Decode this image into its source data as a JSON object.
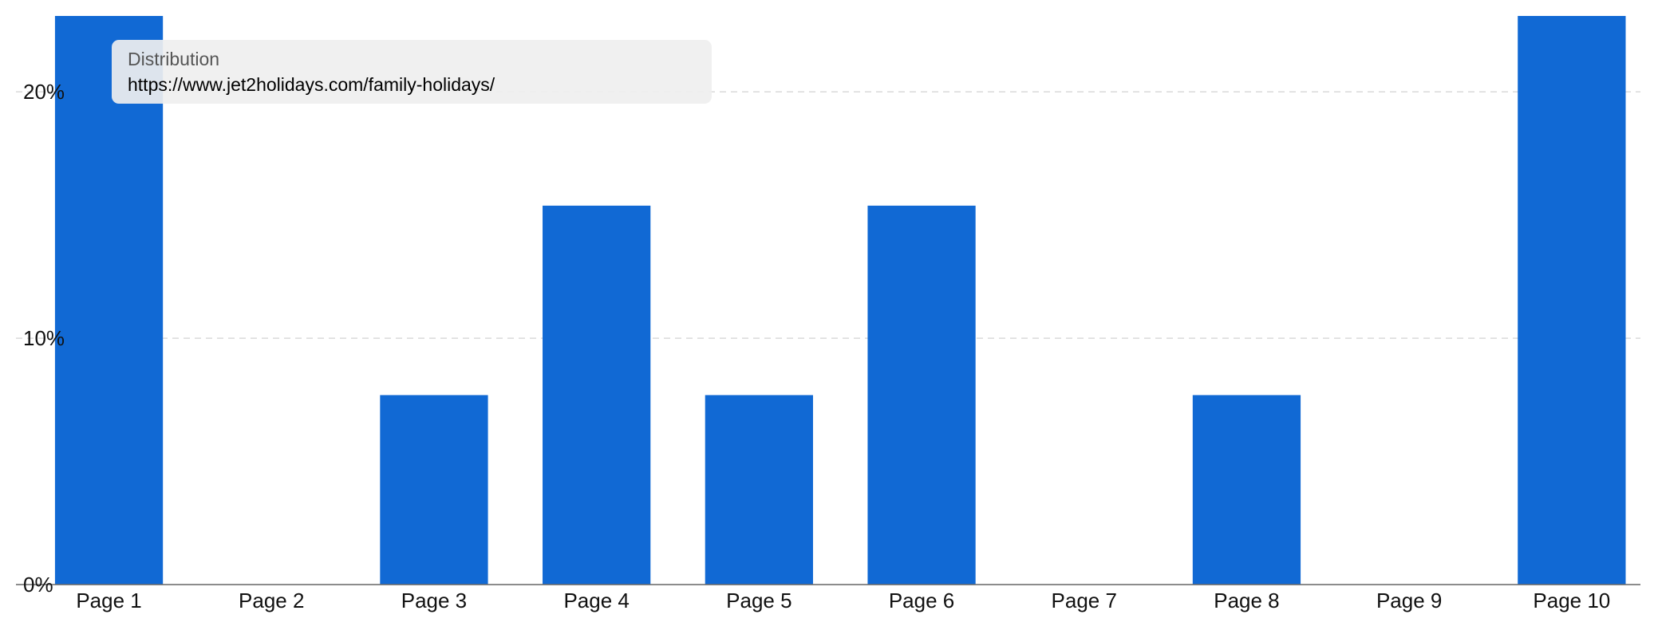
{
  "chart_data": {
    "type": "bar",
    "categories": [
      "Page 1",
      "Page 2",
      "Page 3",
      "Page 4",
      "Page 5",
      "Page 6",
      "Page 7",
      "Page 8",
      "Page 9",
      "Page 10"
    ],
    "values": [
      23.08,
      0,
      7.69,
      15.38,
      7.69,
      15.38,
      0,
      7.69,
      0,
      23.08
    ],
    "color": "#1169d4",
    "ylim": [
      0,
      23.08
    ],
    "yticks": [
      {
        "value": 0,
        "label": "0%"
      },
      {
        "value": 10,
        "label": "10%"
      },
      {
        "value": 20,
        "label": "20%"
      }
    ],
    "grid": true,
    "tooltip": {
      "title": "Distribution",
      "text": "https://www.jet2holidays.com/family-holidays/"
    }
  }
}
